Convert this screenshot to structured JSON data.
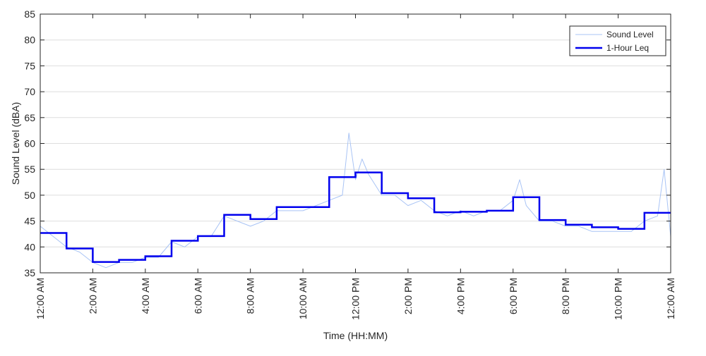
{
  "chart_data": {
    "type": "line",
    "title": "",
    "xlabel": "Time (HH:MM)",
    "ylabel": "Sound Level (dBA)",
    "xlim": [
      0,
      24
    ],
    "ylim": [
      35,
      85
    ],
    "x_ticks": [
      0,
      2,
      4,
      6,
      8,
      10,
      12,
      14,
      16,
      18,
      20,
      22,
      24
    ],
    "x_tick_labels": [
      "12:00 AM",
      "2:00 AM",
      "4:00 AM",
      "6:00 AM",
      "8:00 AM",
      "10:00 AM",
      "12:00 PM",
      "2:00 PM",
      "4:00 PM",
      "6:00 PM",
      "8:00 PM",
      "10:00 PM",
      "12:00 AM"
    ],
    "y_ticks": [
      35,
      40,
      45,
      50,
      55,
      60,
      65,
      70,
      75,
      80,
      85
    ],
    "y_tick_labels": [
      "35",
      "40",
      "45",
      "50",
      "55",
      "60",
      "65",
      "70",
      "75",
      "80",
      "85"
    ],
    "grid": "horizontal",
    "legend_position": "top-right",
    "series": [
      {
        "name": "Sound Level",
        "color": "#a9c4f5",
        "style": "thin-line",
        "x": [
          0,
          0.5,
          1,
          1.5,
          2,
          2.5,
          3,
          3.5,
          4,
          4.5,
          5,
          5.5,
          6,
          6.5,
          7,
          7.5,
          8,
          8.5,
          9,
          9.5,
          10,
          10.5,
          11,
          11.5,
          11.75,
          12,
          12.25,
          12.5,
          13,
          13.5,
          14,
          14.5,
          15,
          15.5,
          16,
          16.5,
          17,
          17.5,
          18,
          18.25,
          18.5,
          19,
          19.5,
          20,
          20.5,
          21,
          21.5,
          22,
          22.5,
          23,
          23.5,
          23.75,
          24
        ],
        "values": [
          44,
          42,
          40,
          39,
          37,
          36,
          37,
          37,
          38,
          38,
          41,
          40,
          42,
          42,
          46,
          45,
          44,
          45,
          47,
          47,
          47,
          48,
          49,
          50,
          62,
          53,
          57,
          54,
          50,
          50,
          48,
          49,
          47,
          46,
          47,
          46,
          47,
          47,
          49,
          53,
          48,
          45,
          45,
          44,
          44,
          43,
          43,
          43,
          43,
          45,
          46,
          55,
          42
        ]
      },
      {
        "name": "1-Hour Leq",
        "color": "#0000ee",
        "style": "step",
        "hour_start": [
          0,
          1,
          2,
          3,
          4,
          5,
          6,
          7,
          8,
          9,
          10,
          11,
          12,
          13,
          14,
          15,
          16,
          17,
          18,
          19,
          20,
          21,
          22,
          23
        ],
        "values": [
          42.7,
          39.7,
          37.1,
          37.5,
          38.2,
          41.2,
          42.1,
          46.2,
          45.4,
          47.7,
          47.7,
          53.5,
          54.4,
          50.4,
          49.4,
          46.7,
          46.8,
          47.0,
          49.6,
          45.2,
          44.3,
          43.8,
          43.5,
          46.6
        ]
      }
    ]
  }
}
